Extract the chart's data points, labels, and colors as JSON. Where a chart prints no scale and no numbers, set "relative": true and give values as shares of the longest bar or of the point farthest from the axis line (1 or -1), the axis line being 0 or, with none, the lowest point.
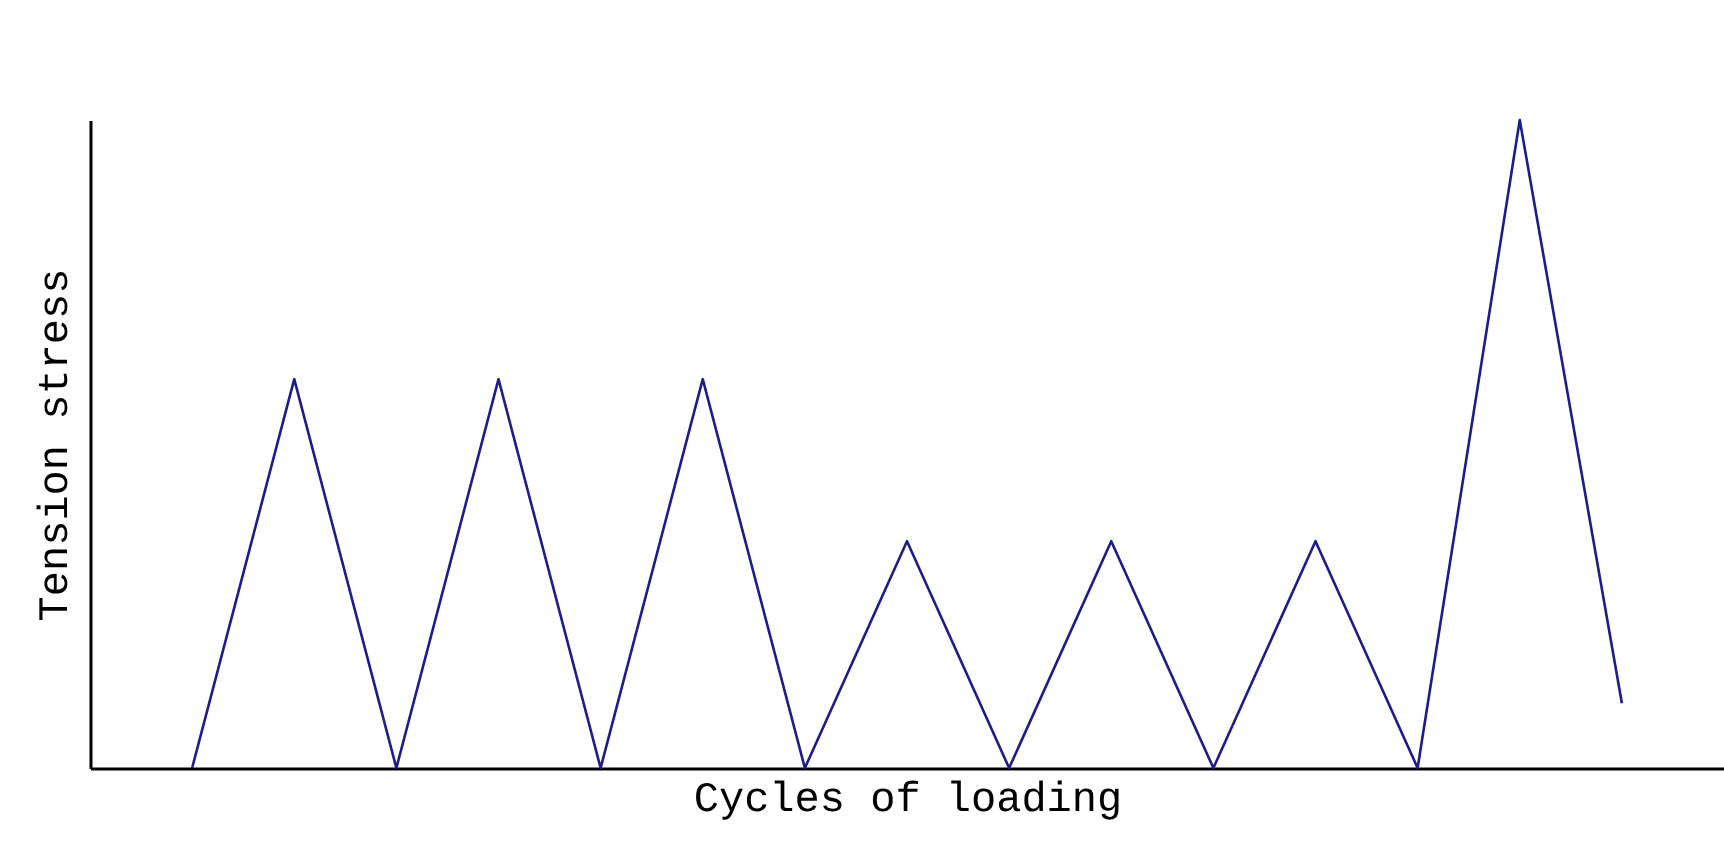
{
  "chart_data": {
    "type": "line",
    "xlabel": "Cycles of loading",
    "ylabel": "Tension stress",
    "relative": true,
    "categories": [
      null,
      null,
      null,
      null,
      null,
      null,
      null,
      null,
      null,
      null,
      null,
      null,
      null,
      null,
      null
    ],
    "series": [
      {
        "color": "#1c1c8c",
        "values": [
          0,
          0.6,
          0,
          0.6,
          0,
          0.6,
          0,
          0.35,
          0,
          0.35,
          0,
          0.35,
          0,
          1,
          0.1
        ]
      }
    ],
    "grid": false,
    "legend": false,
    "marker": "none",
    "line_style": "solid"
  }
}
